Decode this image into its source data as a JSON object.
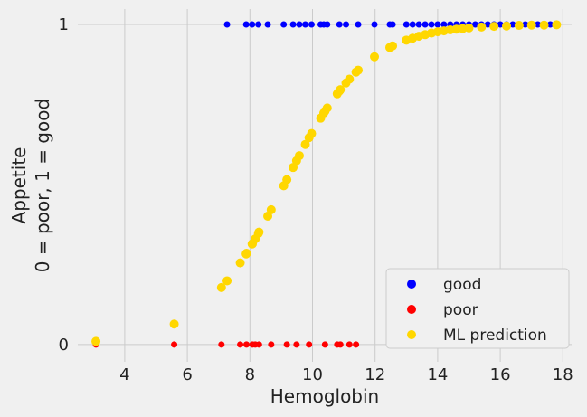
{
  "chart_data": {
    "type": "scatter",
    "title": "",
    "xlabel": "Hemoglobin",
    "ylabel": [
      "Appetite",
      "0 = poor, 1 = good"
    ],
    "xlim": [
      2.5,
      18.28
    ],
    "ylim": [
      -0.054,
      1.048
    ],
    "xticks": [
      4,
      6,
      8,
      10,
      12,
      14,
      16,
      18
    ],
    "xtick_labels": [
      "4",
      "6",
      "8",
      "10",
      "12",
      "14",
      "16",
      "18"
    ],
    "yticks": [
      0,
      1
    ],
    "ytick_labels": [
      "0",
      "1"
    ],
    "grid": true,
    "legend_position": "lower-right",
    "series": [
      {
        "name": "good",
        "color": "#0000ff",
        "x": [
          7.27,
          7.88,
          8.07,
          8.27,
          8.57,
          9.08,
          9.38,
          9.58,
          9.77,
          9.97,
          10.26,
          10.36,
          10.47,
          10.86,
          11.07,
          11.46,
          11.98,
          12.47,
          12.56,
          13.0,
          13.2,
          13.4,
          13.6,
          13.8,
          14.0,
          14.2,
          14.4,
          14.6,
          14.8,
          15.0,
          15.2,
          15.4,
          15.6,
          15.8,
          16.0,
          16.2,
          16.4,
          16.6,
          16.8,
          17.0,
          17.2,
          17.4,
          17.6,
          17.8
        ],
        "y": [
          1,
          1,
          1,
          1,
          1,
          1,
          1,
          1,
          1,
          1,
          1,
          1,
          1,
          1,
          1,
          1,
          1,
          1,
          1,
          1,
          1,
          1,
          1,
          1,
          1,
          1,
          1,
          1,
          1,
          1,
          1,
          1,
          1,
          1,
          1,
          1,
          1,
          1,
          1,
          1,
          1,
          1,
          1,
          1
        ]
      },
      {
        "name": "poor",
        "color": "#ff0000",
        "x": [
          3.08,
          5.58,
          7.09,
          7.69,
          7.89,
          8.08,
          8.17,
          8.29,
          8.68,
          9.18,
          9.49,
          9.89,
          10.4,
          10.79,
          10.89,
          11.18,
          11.39
        ],
        "y": [
          0,
          0,
          0,
          0,
          0,
          0,
          0,
          0,
          0,
          0,
          0,
          0,
          0,
          0,
          0,
          0,
          0
        ]
      },
      {
        "name": "ML prediction",
        "color": "#ffd700",
        "x": [
          3.08,
          5.58,
          7.09,
          7.27,
          7.69,
          7.88,
          7.89,
          8.07,
          8.08,
          8.17,
          8.27,
          8.29,
          8.57,
          8.68,
          9.08,
          9.18,
          9.38,
          9.49,
          9.58,
          9.77,
          9.89,
          9.97,
          10.26,
          10.36,
          10.4,
          10.47,
          10.79,
          10.86,
          10.89,
          11.07,
          11.18,
          11.39,
          11.46,
          11.98,
          12.47,
          12.56,
          13.0,
          13.2,
          13.4,
          13.6,
          13.8,
          14.0,
          14.2,
          14.4,
          14.6,
          14.8,
          15.0,
          15.4,
          15.8,
          16.2,
          16.6,
          17.0,
          17.4,
          17.8
        ],
        "y": [
          0.01,
          0.064,
          0.178,
          0.199,
          0.255,
          0.283,
          0.285,
          0.314,
          0.315,
          0.33,
          0.347,
          0.351,
          0.401,
          0.421,
          0.496,
          0.515,
          0.553,
          0.574,
          0.59,
          0.625,
          0.646,
          0.659,
          0.707,
          0.723,
          0.729,
          0.739,
          0.783,
          0.792,
          0.796,
          0.817,
          0.829,
          0.851,
          0.857,
          0.899,
          0.928,
          0.933,
          0.951,
          0.957,
          0.963,
          0.968,
          0.973,
          0.977,
          0.98,
          0.983,
          0.985,
          0.987,
          0.989,
          0.992,
          0.994,
          0.995,
          0.997,
          0.998,
          0.998,
          0.999
        ]
      }
    ]
  }
}
